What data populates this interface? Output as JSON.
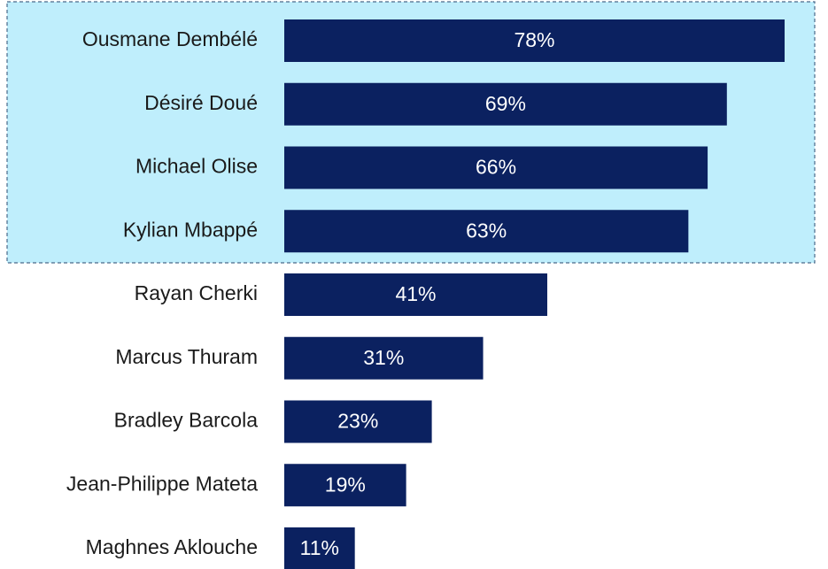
{
  "chart_data": {
    "type": "bar",
    "orientation": "horizontal",
    "categories": [
      "Ousmane Dembélé",
      "Désiré Doué",
      "Michael Olise",
      "Kylian Mbappé",
      "Rayan Cherki",
      "Marcus Thuram",
      "Bradley Barcola",
      "Jean-Philippe Mateta",
      "Maghnes Aklouche"
    ],
    "values": [
      78,
      69,
      66,
      63,
      41,
      31,
      23,
      19,
      11
    ],
    "value_labels": [
      "78%",
      "69%",
      "66%",
      "63%",
      "41%",
      "31%",
      "23%",
      "19%",
      "11%"
    ],
    "color": "#0b2160"
  }
}
